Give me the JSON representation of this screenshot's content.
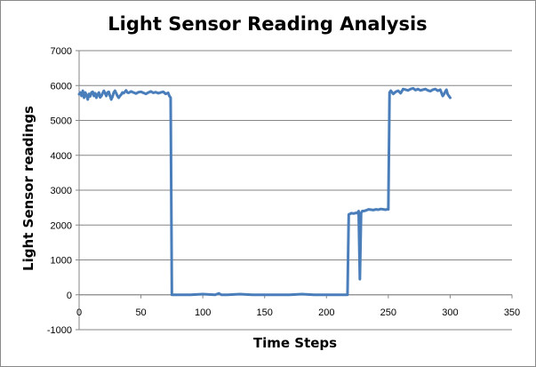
{
  "chart_data": {
    "type": "line",
    "title": "Light Sensor Reading Analysis",
    "xlabel": "Time Steps",
    "ylabel": "Light Sensor readings",
    "xlim": [
      0,
      350
    ],
    "ylim": [
      -1000,
      7000
    ],
    "xticks": [
      0,
      50,
      100,
      150,
      200,
      250,
      300,
      350
    ],
    "yticks": [
      -1000,
      0,
      1000,
      2000,
      3000,
      4000,
      5000,
      6000,
      7000
    ],
    "grid": {
      "horizontal": true,
      "vertical": false
    },
    "legend": "none",
    "series": [
      {
        "color": "#4a7ebb",
        "x": [
          0,
          1,
          2,
          3,
          4,
          5,
          6,
          7,
          8,
          9,
          10,
          11,
          12,
          13,
          14,
          15,
          16,
          17,
          18,
          19,
          20,
          21,
          22,
          23,
          24,
          25,
          26,
          27,
          28,
          29,
          30,
          31,
          32,
          33,
          34,
          35,
          36,
          37,
          38,
          39,
          40,
          42,
          44,
          46,
          48,
          50,
          52,
          54,
          56,
          58,
          60,
          62,
          64,
          66,
          68,
          70,
          72,
          73,
          74,
          75,
          76,
          80,
          90,
          100,
          110,
          113,
          115,
          120,
          130,
          140,
          150,
          160,
          170,
          180,
          190,
          200,
          210,
          215,
          216,
          217,
          218,
          220,
          222,
          224,
          225,
          226,
          227,
          228,
          229,
          230,
          232,
          234,
          236,
          238,
          240,
          242,
          244,
          246,
          248,
          249,
          250,
          251,
          252,
          254,
          256,
          258,
          260,
          262,
          264,
          266,
          268,
          270,
          272,
          274,
          276,
          278,
          280,
          282,
          284,
          286,
          288,
          290,
          292,
          294,
          295,
          296,
          297,
          298,
          299,
          300
        ],
        "y": [
          5750,
          5800,
          5700,
          5850,
          5650,
          5800,
          5720,
          5600,
          5760,
          5690,
          5800,
          5820,
          5700,
          5780,
          5650,
          5740,
          5800,
          5660,
          5700,
          5780,
          5850,
          5780,
          5700,
          5800,
          5820,
          5700,
          5600,
          5680,
          5800,
          5850,
          5780,
          5700,
          5650,
          5700,
          5740,
          5800,
          5780,
          5820,
          5860,
          5800,
          5790,
          5830,
          5800,
          5770,
          5810,
          5820,
          5790,
          5760,
          5800,
          5830,
          5790,
          5810,
          5780,
          5800,
          5820,
          5760,
          5790,
          5700,
          5650,
          0,
          0,
          0,
          0,
          20,
          0,
          40,
          0,
          0,
          20,
          0,
          0,
          0,
          0,
          20,
          0,
          0,
          0,
          0,
          0,
          0,
          2300,
          2340,
          2330,
          2350,
          2340,
          2400,
          450,
          2350,
          2400,
          2400,
          2420,
          2450,
          2440,
          2430,
          2450,
          2440,
          2460,
          2450,
          2440,
          2450,
          2450,
          5800,
          5850,
          5760,
          5820,
          5850,
          5780,
          5900,
          5880,
          5860,
          5900,
          5920,
          5870,
          5900,
          5860,
          5880,
          5900,
          5860,
          5840,
          5880,
          5900,
          5850,
          5880,
          5700,
          5750,
          5820,
          5880,
          5750,
          5700,
          5650
        ]
      }
    ]
  }
}
